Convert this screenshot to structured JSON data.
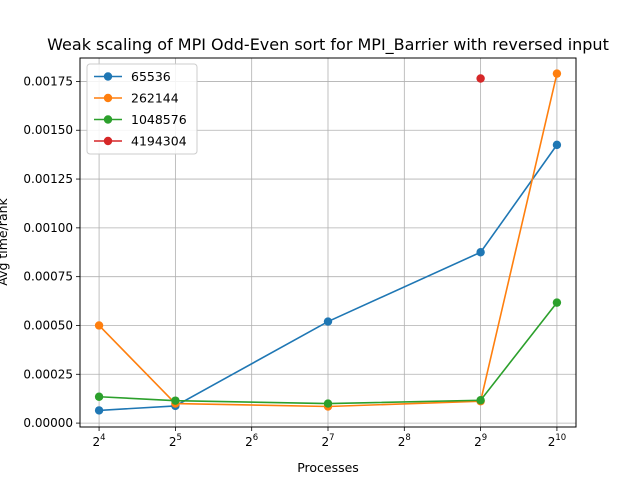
{
  "chart_data": {
    "type": "line",
    "title": "Weak scaling of MPI Odd-Even sort for MPI_Barrier with reversed input",
    "xlabel": "Processes",
    "ylabel": "Avg time/rank",
    "xscale": "log2",
    "xlim_exp": [
      3.75,
      10.25
    ],
    "x_ticks": [
      {
        "base": "2",
        "exp": "4"
      },
      {
        "base": "2",
        "exp": "5"
      },
      {
        "base": "2",
        "exp": "6"
      },
      {
        "base": "2",
        "exp": "7"
      },
      {
        "base": "2",
        "exp": "8"
      },
      {
        "base": "2",
        "exp": "9"
      },
      {
        "base": "2",
        "exp": "10"
      }
    ],
    "x_tick_values": [
      16,
      32,
      64,
      128,
      256,
      512,
      1024
    ],
    "ylim": [
      -2e-05,
      0.00187
    ],
    "y_ticks": [
      "0.00000",
      "0.00025",
      "0.00050",
      "0.00075",
      "0.00100",
      "0.00125",
      "0.00150",
      "0.00175"
    ],
    "y_tick_values": [
      0,
      0.00025,
      0.0005,
      0.00075,
      0.001,
      0.00125,
      0.0015,
      0.00175
    ],
    "grid": true,
    "legend_position": "top-left",
    "series": [
      {
        "name": "65536",
        "color": "#1f77b4",
        "x": [
          16,
          32,
          128,
          512,
          1024
        ],
        "y": [
          6.5e-05,
          8.8e-05,
          0.00052,
          0.000875,
          0.001425
        ]
      },
      {
        "name": "262144",
        "color": "#ff7f0e",
        "x": [
          16,
          32,
          128,
          512,
          1024
        ],
        "y": [
          0.0005,
          0.0001,
          8.5e-05,
          0.000112,
          0.00179
        ]
      },
      {
        "name": "1048576",
        "color": "#2ca02c",
        "x": [
          16,
          32,
          128,
          512,
          1024
        ],
        "y": [
          0.000135,
          0.000115,
          0.0001,
          0.000117,
          0.000617
        ]
      },
      {
        "name": "4194304",
        "color": "#d62728",
        "x": [
          512
        ],
        "y": [
          0.001765
        ]
      }
    ]
  }
}
